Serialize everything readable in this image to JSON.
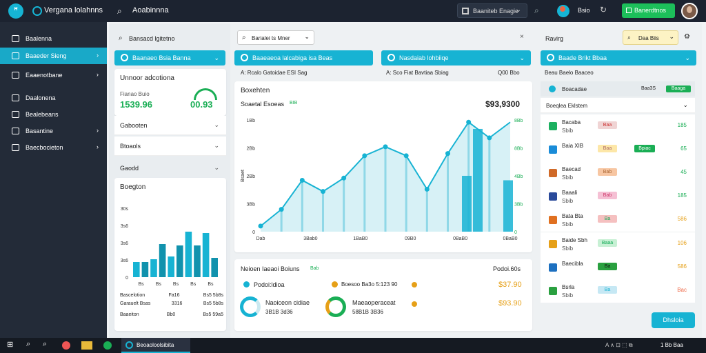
{
  "topbar": {
    "logo_glyph": "ꟸ",
    "app_title": "Vergana lolahnns",
    "search_text": "Aoabinnna",
    "dropdown_label": "Baaniteb Enagie",
    "user_label": "Bsio",
    "action_button": "Banerdtnos"
  },
  "sidebar": {
    "items": [
      {
        "label": "Baalenna",
        "active": false
      },
      {
        "label": "Baaeder Sieng",
        "active": true
      },
      {
        "label": "Eaaenotbane",
        "active": false
      },
      {
        "label": "Daalonena",
        "active": false
      },
      {
        "label": "Bealebeans",
        "active": false
      },
      {
        "label": "Basantine",
        "active": false
      },
      {
        "label": "Baecbocieton",
        "active": false
      }
    ]
  },
  "left_col": {
    "header": "Bansacd lgitetno",
    "pill": "Baanaeo Bsia Banna",
    "metric_card": {
      "title": "Unnoor adcotiona",
      "sub": "Fianao Buio",
      "value": "1539.96",
      "gauge_value": "00.93"
    },
    "acc_rows": [
      "Gabooten",
      "Btoaols",
      "Gaodd"
    ],
    "bar_card": {
      "title": "Boegton",
      "yticks": [
        "30s",
        "3s6",
        "3s6",
        "3s6",
        "0"
      ],
      "xticks": [
        "Bs",
        "Bs",
        "Bs",
        "Bs",
        "Bs"
      ],
      "table": [
        [
          "Bascelotion",
          "Fa16",
          "Bs5 5b8s"
        ],
        [
          "Garauelt Bsas",
          "3316",
          "Bs5 5b8s"
        ],
        [
          "Baaeiton",
          "Bb0",
          "Bs5 59a5"
        ]
      ]
    }
  },
  "mid_col": {
    "dropdown": "Barialei ts Mner",
    "pills": [
      "Baaeaeoa lalcabiga isa Beas",
      "Nasdaiab lohbiiqe"
    ],
    "subheads": [
      "A: Rcalo Gatoidae ESI Sag",
      "A: Sco Fiat Bavtiaa Sbiag"
    ],
    "subhead_value": "Q00 Bbo",
    "line_card": {
      "title": "Boxehten",
      "sub_label": "Soaetal Esoeas",
      "sub_badge": "BIB",
      "big_value": "$93,9300",
      "yticks_left": [
        "1Bb",
        "2Bb",
        "2Bb",
        "3Bb",
        "0"
      ],
      "ylabel_left": "Bsaet",
      "yticks_right": [
        "8Bb",
        "8Bb",
        "4Bb",
        "3Bb",
        "0"
      ],
      "xticks": [
        "Dab",
        "3Bab0",
        "1BaB0",
        "09B0",
        "0BaB0",
        "0BaB0"
      ]
    },
    "summary_card": {
      "title": "Neioen Iaeaoi Boiuns",
      "title_badge": "Bab",
      "right_title": "Podoi.60s",
      "legend1": "Podoi:ldioa",
      "legend2": "Boesoo Ba3o 5:123 90",
      "val1": "$37.90",
      "val2": "$93.90",
      "donut1_title": "Naoiceon cidiae",
      "donut1_sub": "3B1B 3d36",
      "donut2_title": "Maeaoperaceat",
      "donut2_sub": "58B1B 3B36"
    }
  },
  "right_col": {
    "header": "Ravirg",
    "chip": "Daa Biis",
    "pill": "Baade Brikt Bbaa",
    "sub_label": "Beau Baelo Baaceo",
    "summary_row": {
      "name": "Boacadae",
      "b1": "Baa3S",
      "b2": "Baaga"
    },
    "panel_title": "Boeqlea Eklstem",
    "rows": [
      {
        "n1": "Bacaba",
        "n2": "Sbib",
        "b1": "Baa",
        "b2": "",
        "qty": "185",
        "color": "#1cb060"
      },
      {
        "n1": "Baia XIB",
        "n2": "",
        "b1": "Baa",
        "b2": "Bpiac",
        "qty": "65",
        "color": "#1a8cd8"
      },
      {
        "n1": "Baecad",
        "n2": "Sbib",
        "b1": "Bab",
        "b2": "",
        "qty": "45",
        "color": "#d06a28"
      },
      {
        "n1": "Baaali",
        "n2": "Sbib",
        "b1": "Bab",
        "b2": "",
        "qty": "185",
        "color": "#2a4a9a"
      },
      {
        "n1": "Bata Bta",
        "n2": "Sbib",
        "b1": "Ba",
        "b2": "",
        "qty": "586",
        "color": "#e07020"
      },
      {
        "n1": "Baide Sbh",
        "n2": "Sbib",
        "b1": "Baaa",
        "b2": "",
        "qty": "106",
        "color": "#e6a018"
      },
      {
        "n1": "Baecibla",
        "n2": "",
        "b1": "Ba",
        "b2": "",
        "qty": "586",
        "color": "#1d70c0"
      },
      {
        "n1": "Bsrla",
        "n2": "Sbib",
        "b1": "Ba",
        "b2": "",
        "qty": "Bac",
        "color": "#2aa040"
      }
    ],
    "footer_btn": "Dhsloia"
  },
  "taskbar": {
    "app_label": "Beoaoloolsibita",
    "tray": "A ∧ ⊡ ⬚ ⧉",
    "clock": "1 Bb Baa"
  },
  "colors": {
    "accent": "#17b3d3",
    "green": "#1aae55",
    "orange": "#e6a018"
  },
  "chart_data": [
    {
      "type": "bar",
      "title": "Boegton",
      "values": [
        0.22,
        0.22,
        0.26,
        0.48,
        0.3,
        0.46,
        0.66,
        0.46,
        0.64,
        0.28
      ],
      "ylim": [
        0,
        1
      ]
    },
    {
      "type": "line",
      "title": "Boxehten",
      "values": [
        0.05,
        0.2,
        0.46,
        0.36,
        0.48,
        0.68,
        0.76,
        0.68,
        0.38,
        0.7,
        0.98,
        0.84,
        0.98
      ],
      "bars": [
        0.5,
        0.92,
        0.46
      ],
      "ylim": [
        0,
        1
      ]
    }
  ]
}
